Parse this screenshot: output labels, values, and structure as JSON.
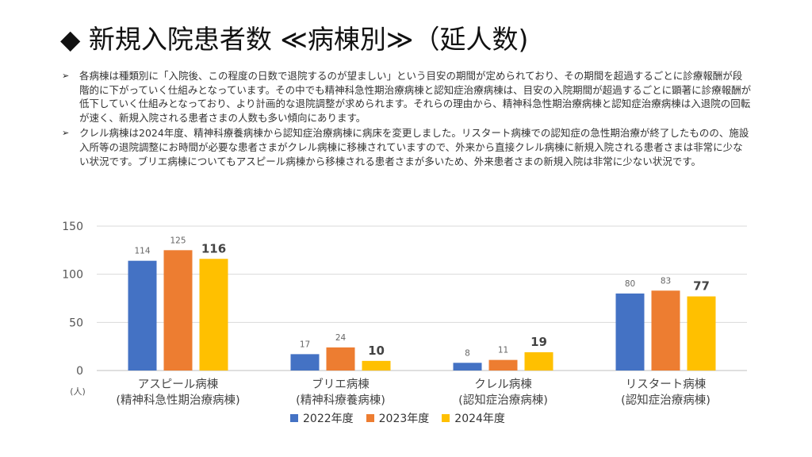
{
  "slide": {
    "title": "◆ 新規入院患者数 ≪病棟別≫（延人数)",
    "bullets": [
      "各病棟は種類別に「入院後、この程度の日数で退院するのが望ましい」という目安の期間が定められており、その期間を超過するごとに診療報酬が段階的に下がっていく仕組みとなっています。その中でも精神科急性期治療病棟と認知症治療病棟は、目安の入院期間が超過するごとに顕著に診療報酬が低下していく仕組みとなっており、より計画的な退院調整が求められます。それらの理由から、精神科急性期治療病棟と認知症治療病棟は入退院の回転が速く、新規入院される患者さまの人数も多い傾向にあります。",
      "クレル病棟は2024年度、精神科療養病棟から認知症治療病棟に病床を変更しました。リスタート病棟での認知症の急性期治療が終了したものの、施設入所等の退院調整にお時間が必要な患者さまがクレル病棟に移棟されていますので、外来から直接クレル病棟に新規入院される患者さまは非常に少ない状況です。ブリエ病棟についてもアスピール病棟から移棟される患者さまが多いため、外来患者さまの新規入院は非常に少ない状況です。"
    ],
    "bullet_mark": "➢"
  },
  "chart_data": {
    "type": "bar",
    "categories": [
      [
        "アスピール病棟",
        "(精神科急性期治療病棟)"
      ],
      [
        "ブリエ病棟",
        "(精神科療養病棟)"
      ],
      [
        "クレル病棟",
        "(認知症治療病棟)"
      ],
      [
        "リスタート病棟",
        "(認知症治療病棟)"
      ]
    ],
    "series": [
      {
        "name": "2022年度",
        "color": "#4472C4",
        "values": [
          114,
          17,
          8,
          80
        ]
      },
      {
        "name": "2023年度",
        "color": "#ED7D31",
        "values": [
          125,
          24,
          11,
          83
        ]
      },
      {
        "name": "2024年度",
        "color": "#FFC000",
        "values": [
          116,
          10,
          19,
          77
        ]
      }
    ],
    "ylim": [
      0,
      150
    ],
    "yticks": [
      0,
      50,
      100,
      150
    ],
    "ylabel": "(人)",
    "grid": true,
    "legend": "bottom"
  }
}
